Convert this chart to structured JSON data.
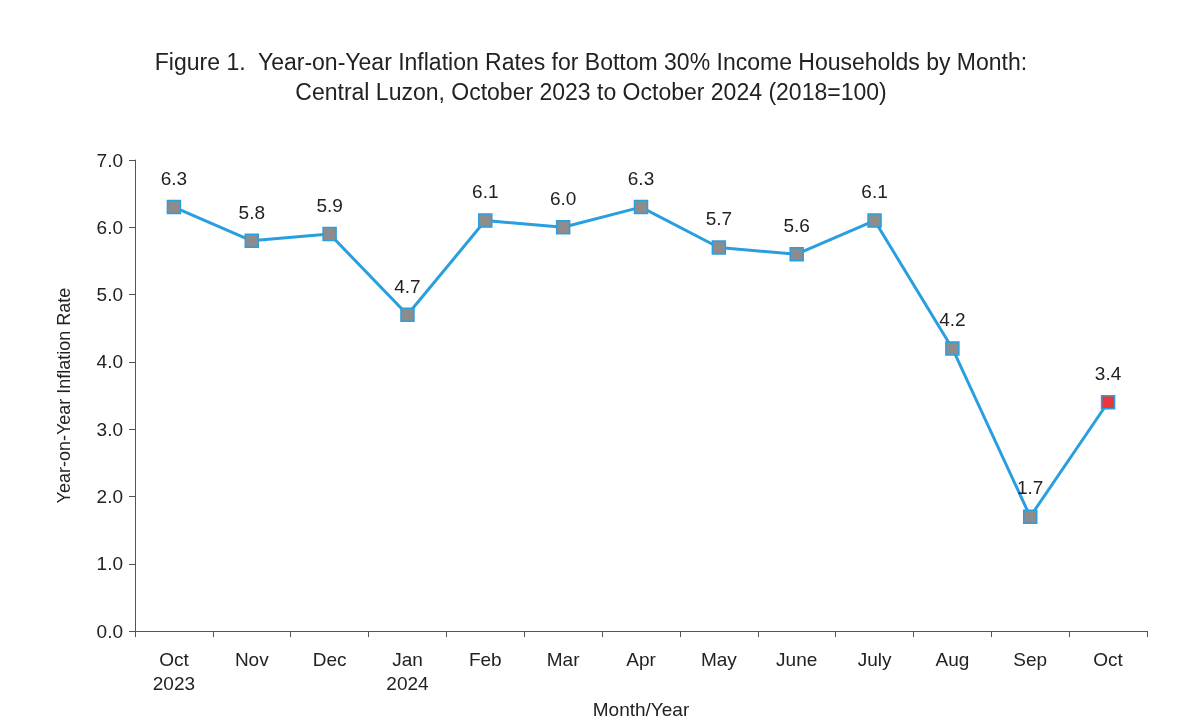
{
  "chart_data": {
    "type": "line",
    "title": "Figure 1.  Year-on-Year Inflation Rates for Bottom 30% Income Households by Month:\nCentral Luzon, October 2023 to October 2024 (2018=100)",
    "xlabel": "Month/Year",
    "ylabel": "Year-on-Year Inflation Rate",
    "categories": [
      "Oct\n2023",
      "Nov",
      "Dec",
      "Jan\n2024",
      "Feb",
      "Mar",
      "Apr",
      "May",
      "June",
      "July",
      "Aug",
      "Sep",
      "Oct"
    ],
    "series": [
      {
        "color": "#2a9fe0",
        "colors": [
          "#8c8c8c",
          "#8c8c8c",
          "#8c8c8c",
          "#8c8c8c",
          "#8c8c8c",
          "#8c8c8c",
          "#8c8c8c",
          "#8c8c8c",
          "#8c8c8c",
          "#8c8c8c",
          "#8c8c8c",
          "#8c8c8c",
          "#e8383d"
        ],
        "values": [
          6.3,
          5.8,
          5.9,
          4.7,
          6.1,
          6.0,
          6.3,
          5.7,
          5.6,
          6.1,
          4.2,
          1.7,
          3.4
        ],
        "value_labels": [
          "6.3",
          "5.8",
          "5.9",
          "4.7",
          "6.1",
          "6.0",
          "6.3",
          "5.7",
          "5.6",
          "6.1",
          "4.2",
          "1.7",
          "3.4"
        ]
      }
    ],
    "ylim": [
      0,
      7
    ],
    "yticks": [
      {
        "value": 0,
        "label": "0.0"
      },
      {
        "value": 1,
        "label": "1.0"
      },
      {
        "value": 2,
        "label": "2.0"
      },
      {
        "value": 3,
        "label": "3.0"
      },
      {
        "value": 4,
        "label": "4.0"
      },
      {
        "value": 5,
        "label": "5.0"
      },
      {
        "value": 6,
        "label": "6.0"
      },
      {
        "value": 7,
        "label": "7.0"
      }
    ],
    "marker": "square",
    "line_style": "solid"
  }
}
